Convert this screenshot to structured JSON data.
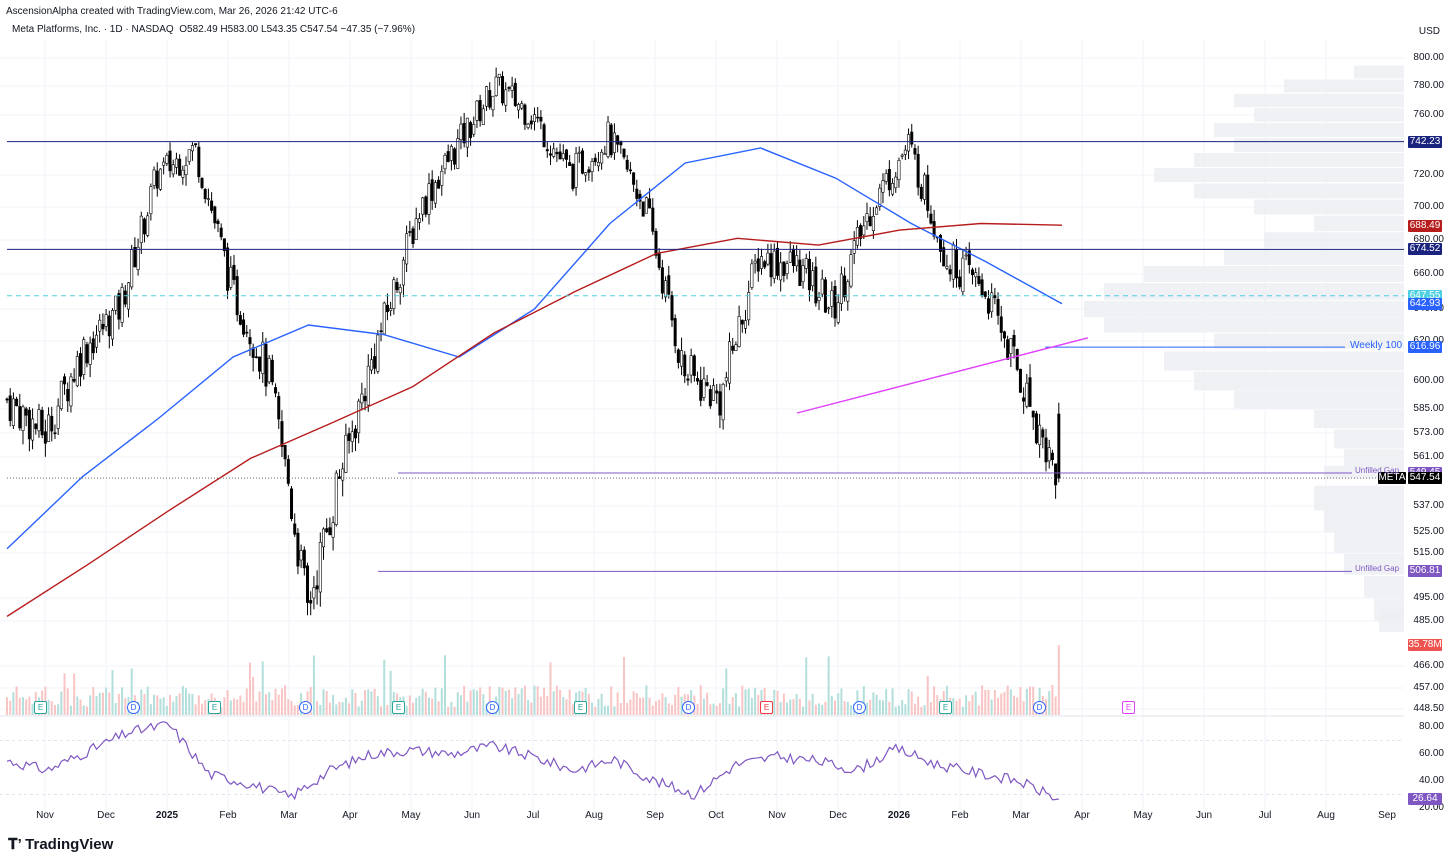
{
  "header": {
    "credit": "AscensionAlpha created with TradingView.com, Mar 26, 2026 21:42 UTC-6",
    "symbol_line": "Meta Platforms, Inc. · 1D · NASDAQ",
    "ohlc": "O582.49  H583.00  L543.35  C547.54  −47.35 (−7.96%)",
    "currency": "USD"
  },
  "brand": "TradingView",
  "price_axis": {
    "labels": [
      "800.00",
      "780.00",
      "760.00",
      "720.00",
      "700.00",
      "680.00",
      "660.00",
      "640.00",
      "620.00",
      "600.00",
      "585.00",
      "573.00",
      "561.00",
      "537.00",
      "525.00",
      "515.00",
      "495.00",
      "485.00",
      "466.00",
      "457.00",
      "448.50"
    ],
    "tags": [
      {
        "text": "742.23",
        "value": 742.23,
        "color": "#1a237e"
      },
      {
        "text": "688.49",
        "value": 688.49,
        "color": "#b71c1c"
      },
      {
        "text": "674.52",
        "value": 674.52,
        "color": "#1a237e"
      },
      {
        "text": "647.55",
        "value": 647.55,
        "color": "#4dd0e1"
      },
      {
        "text": "642.93",
        "value": 642.93,
        "color": "#2962ff"
      },
      {
        "text": "616.96",
        "value": 616.96,
        "color": "#2962ff"
      },
      {
        "text": "549.45",
        "value": 549.45,
        "color": "#7e57c2"
      },
      {
        "text": "547.54",
        "value": 547.54,
        "color": "#000000",
        "prefix": "META"
      },
      {
        "text": "506.81",
        "value": 506.81,
        "color": "#7e57c2"
      },
      {
        "text": "35.78M",
        "value": 35.78,
        "color": "#ef5350",
        "pane": "volume"
      }
    ]
  },
  "rsi_axis": {
    "labels": [
      "80.00",
      "60.00",
      "40.00",
      "20.00"
    ],
    "tag": {
      "text": "26.64",
      "value": 26.64,
      "color": "#7e57c2"
    }
  },
  "time_axis": [
    {
      "text": "Nov",
      "bold": false
    },
    {
      "text": "Dec",
      "bold": false
    },
    {
      "text": "2025",
      "bold": true
    },
    {
      "text": "Feb",
      "bold": false
    },
    {
      "text": "Mar",
      "bold": false
    },
    {
      "text": "Apr",
      "bold": false
    },
    {
      "text": "May",
      "bold": false
    },
    {
      "text": "Jun",
      "bold": false
    },
    {
      "text": "Jul",
      "bold": false
    },
    {
      "text": "Aug",
      "bold": false
    },
    {
      "text": "Sep",
      "bold": false
    },
    {
      "text": "Oct",
      "bold": false
    },
    {
      "text": "Nov",
      "bold": false
    },
    {
      "text": "Dec",
      "bold": false
    },
    {
      "text": "2026",
      "bold": true
    },
    {
      "text": "Feb",
      "bold": false
    },
    {
      "text": "Mar",
      "bold": false
    },
    {
      "text": "Apr",
      "bold": false
    },
    {
      "text": "May",
      "bold": false
    },
    {
      "text": "Jun",
      "bold": false
    },
    {
      "text": "Jul",
      "bold": false
    },
    {
      "text": "Aug",
      "bold": false
    },
    {
      "text": "Sep",
      "bold": false
    }
  ],
  "annotations": [
    {
      "text": "Weekly 100",
      "value": 616.96,
      "color": "#2962ff"
    },
    {
      "text": "Unfilled Gap",
      "value": 549.45,
      "color": "#7e57c2"
    },
    {
      "text": "Unfilled Gap",
      "value": 506.81,
      "color": "#7e57c2"
    }
  ],
  "events": [
    {
      "type": "e",
      "label": "E"
    },
    {
      "type": "d",
      "label": "D"
    },
    {
      "type": "e",
      "label": "E"
    },
    {
      "type": "d",
      "label": "D"
    },
    {
      "type": "e",
      "label": "E"
    },
    {
      "type": "d",
      "label": "D"
    },
    {
      "type": "e",
      "label": "E"
    },
    {
      "type": "d",
      "label": "D"
    },
    {
      "type": "r",
      "label": "E"
    },
    {
      "type": "d",
      "label": "D"
    },
    {
      "type": "e",
      "label": "E"
    },
    {
      "type": "d",
      "label": "D"
    },
    {
      "type": "m",
      "label": "E"
    }
  ],
  "chart_data": {
    "type": "candlestick",
    "title": "Meta Platforms, Inc. · 1D · NASDAQ",
    "ylim": [
      445,
      805
    ],
    "x_range": [
      "Oct 2024",
      "Sep 2026"
    ],
    "horizontal_levels": [
      742.23,
      674.52,
      647.55,
      616.96,
      549.45,
      506.81
    ],
    "series": [
      {
        "name": "MA (blue)",
        "values": [
          517,
          548,
          580,
          612,
          630,
          624,
          612,
          640,
          690,
          728,
          738,
          718,
          690,
          667,
          643
        ]
      },
      {
        "name": "MA (red)",
        "values": [
          487,
          510,
          535,
          560,
          578,
          597,
          625,
          650,
          672,
          681,
          677,
          686,
          690,
          689
        ]
      },
      {
        "name": "Price (approx closes)",
        "values": [
          590,
          572,
          615,
          640,
          720,
          738,
          650,
          600,
          490,
          560,
          630,
          700,
          740,
          780,
          760,
          720,
          745,
          700,
          605,
          590,
          670,
          665,
          640,
          700,
          740,
          670,
          652,
          600,
          547.54
        ]
      }
    ],
    "last": {
      "open": 582.49,
      "high": 583.0,
      "low": 543.35,
      "close": 547.54,
      "change": -47.35,
      "change_pct": -7.96
    },
    "volume_last": "35.78M",
    "rsi": {
      "last": 26.64,
      "ylim": [
        20,
        85
      ]
    },
    "legend": "none"
  }
}
